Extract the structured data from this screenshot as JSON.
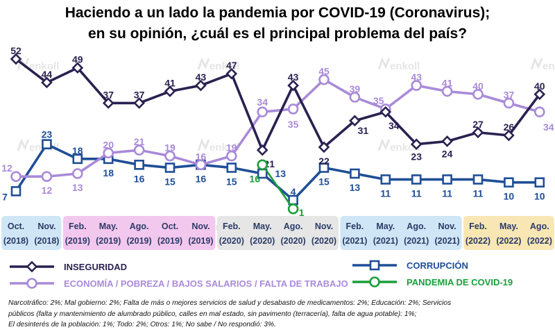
{
  "title": {
    "line1": "Haciendo a un lado la pandemia por COVID-19 (Coronavirus);",
    "line2": "en su opinión, ¿cuál es el principal problema del país?"
  },
  "watermark": "enkoll",
  "chart_data": {
    "type": "line",
    "categories": [
      {
        "month": "Oct.",
        "year": "(2018)"
      },
      {
        "month": "Nov.",
        "year": "(2018)"
      },
      {
        "month": "Feb.",
        "year": "(2019)"
      },
      {
        "month": "May.",
        "year": "(2019)"
      },
      {
        "month": "Ago.",
        "year": "(2019)"
      },
      {
        "month": "Oct.",
        "year": "(2019)"
      },
      {
        "month": "Nov.",
        "year": "(2019)"
      },
      {
        "month": "Feb.",
        "year": "(2020)"
      },
      {
        "month": "May.",
        "year": "(2020)"
      },
      {
        "month": "Ago.",
        "year": "(2020)"
      },
      {
        "month": "Nov.",
        "year": "(2020)"
      },
      {
        "month": "Feb.",
        "year": "(2021)"
      },
      {
        "month": "May.",
        "year": "(2021)"
      },
      {
        "month": "Ago.",
        "year": "(2021)"
      },
      {
        "month": "Nov.",
        "year": "(2021)"
      },
      {
        "month": "Feb.",
        "year": "(2022)"
      },
      {
        "month": "May.",
        "year": "(2022)"
      },
      {
        "month": "Ago.",
        "year": "(2022)"
      }
    ],
    "year_groups": [
      {
        "year": "2018",
        "color": "#cfe6f6"
      },
      {
        "year": "2019",
        "color": "#f3c8ee"
      },
      {
        "year": "2020",
        "color": "#e6e6e6"
      },
      {
        "year": "2021",
        "color": "#cfe6f6"
      },
      {
        "year": "2022",
        "color": "#f8e7b4"
      }
    ],
    "year_group_index": [
      0,
      0,
      1,
      1,
      1,
      1,
      1,
      2,
      2,
      2,
      2,
      3,
      3,
      3,
      3,
      4,
      4,
      4
    ],
    "y_range": [
      0,
      52
    ],
    "series": [
      {
        "name": "INSEGURIDAD",
        "color": "#2a2150",
        "marker": "diamond",
        "values": [
          52,
          44,
          49,
          37,
          37,
          41,
          43,
          47,
          21,
          43,
          22,
          31,
          34,
          23,
          24,
          27,
          26,
          40
        ]
      },
      {
        "name": "ECONOMÍA / POBREZA / BAJOS SALARIOS / FALTA DE TRABAJO",
        "color": "#a98ad8",
        "marker": "circle",
        "values": [
          12,
          12,
          13,
          20,
          21,
          19,
          16,
          19,
          34,
          35,
          45,
          39,
          35,
          43,
          41,
          40,
          37,
          34
        ]
      },
      {
        "name": "CORRUPCIÓN",
        "color": "#1f4e96",
        "marker": "square",
        "values": [
          7,
          23,
          18,
          18,
          16,
          15,
          16,
          15,
          13,
          4,
          15,
          13,
          11,
          11,
          11,
          11,
          10,
          10
        ]
      },
      {
        "name": "PANDEMIA DE COVID-19",
        "color": "#1a9e3a",
        "marker": "circle-open",
        "values": [
          null,
          null,
          null,
          null,
          null,
          null,
          null,
          null,
          16,
          1,
          null,
          null,
          null,
          null,
          null,
          null,
          null,
          null
        ]
      }
    ],
    "legend": [
      {
        "label": "INSEGURIDAD",
        "series": 0
      },
      {
        "label": "ECONOMÍA / POBREZA / BAJOS SALARIOS / FALTA DE TRABAJO",
        "series": 1
      },
      {
        "label": "CORRUPCIÓN",
        "series": 2
      },
      {
        "label": "PANDEMIA DE COVID-19",
        "series": 3
      }
    ]
  },
  "footnote": {
    "line1": "Narcotráfico: 2%; Mal gobierno: 2%; Falta de más o mejores servicios de salud y desabasto de medicamentos: 2%; Educación: 2%; Servicios",
    "line2": "públicos (falta y mantenimiento de alumbrado público, calles en mal estado, sin pavimento (terracería), falta de agua potable): 1%;",
    "line3": "El desinterés de la población: 1%; Todo: 2%; Otros: 1%; No sabe / No respondió: 3%."
  }
}
